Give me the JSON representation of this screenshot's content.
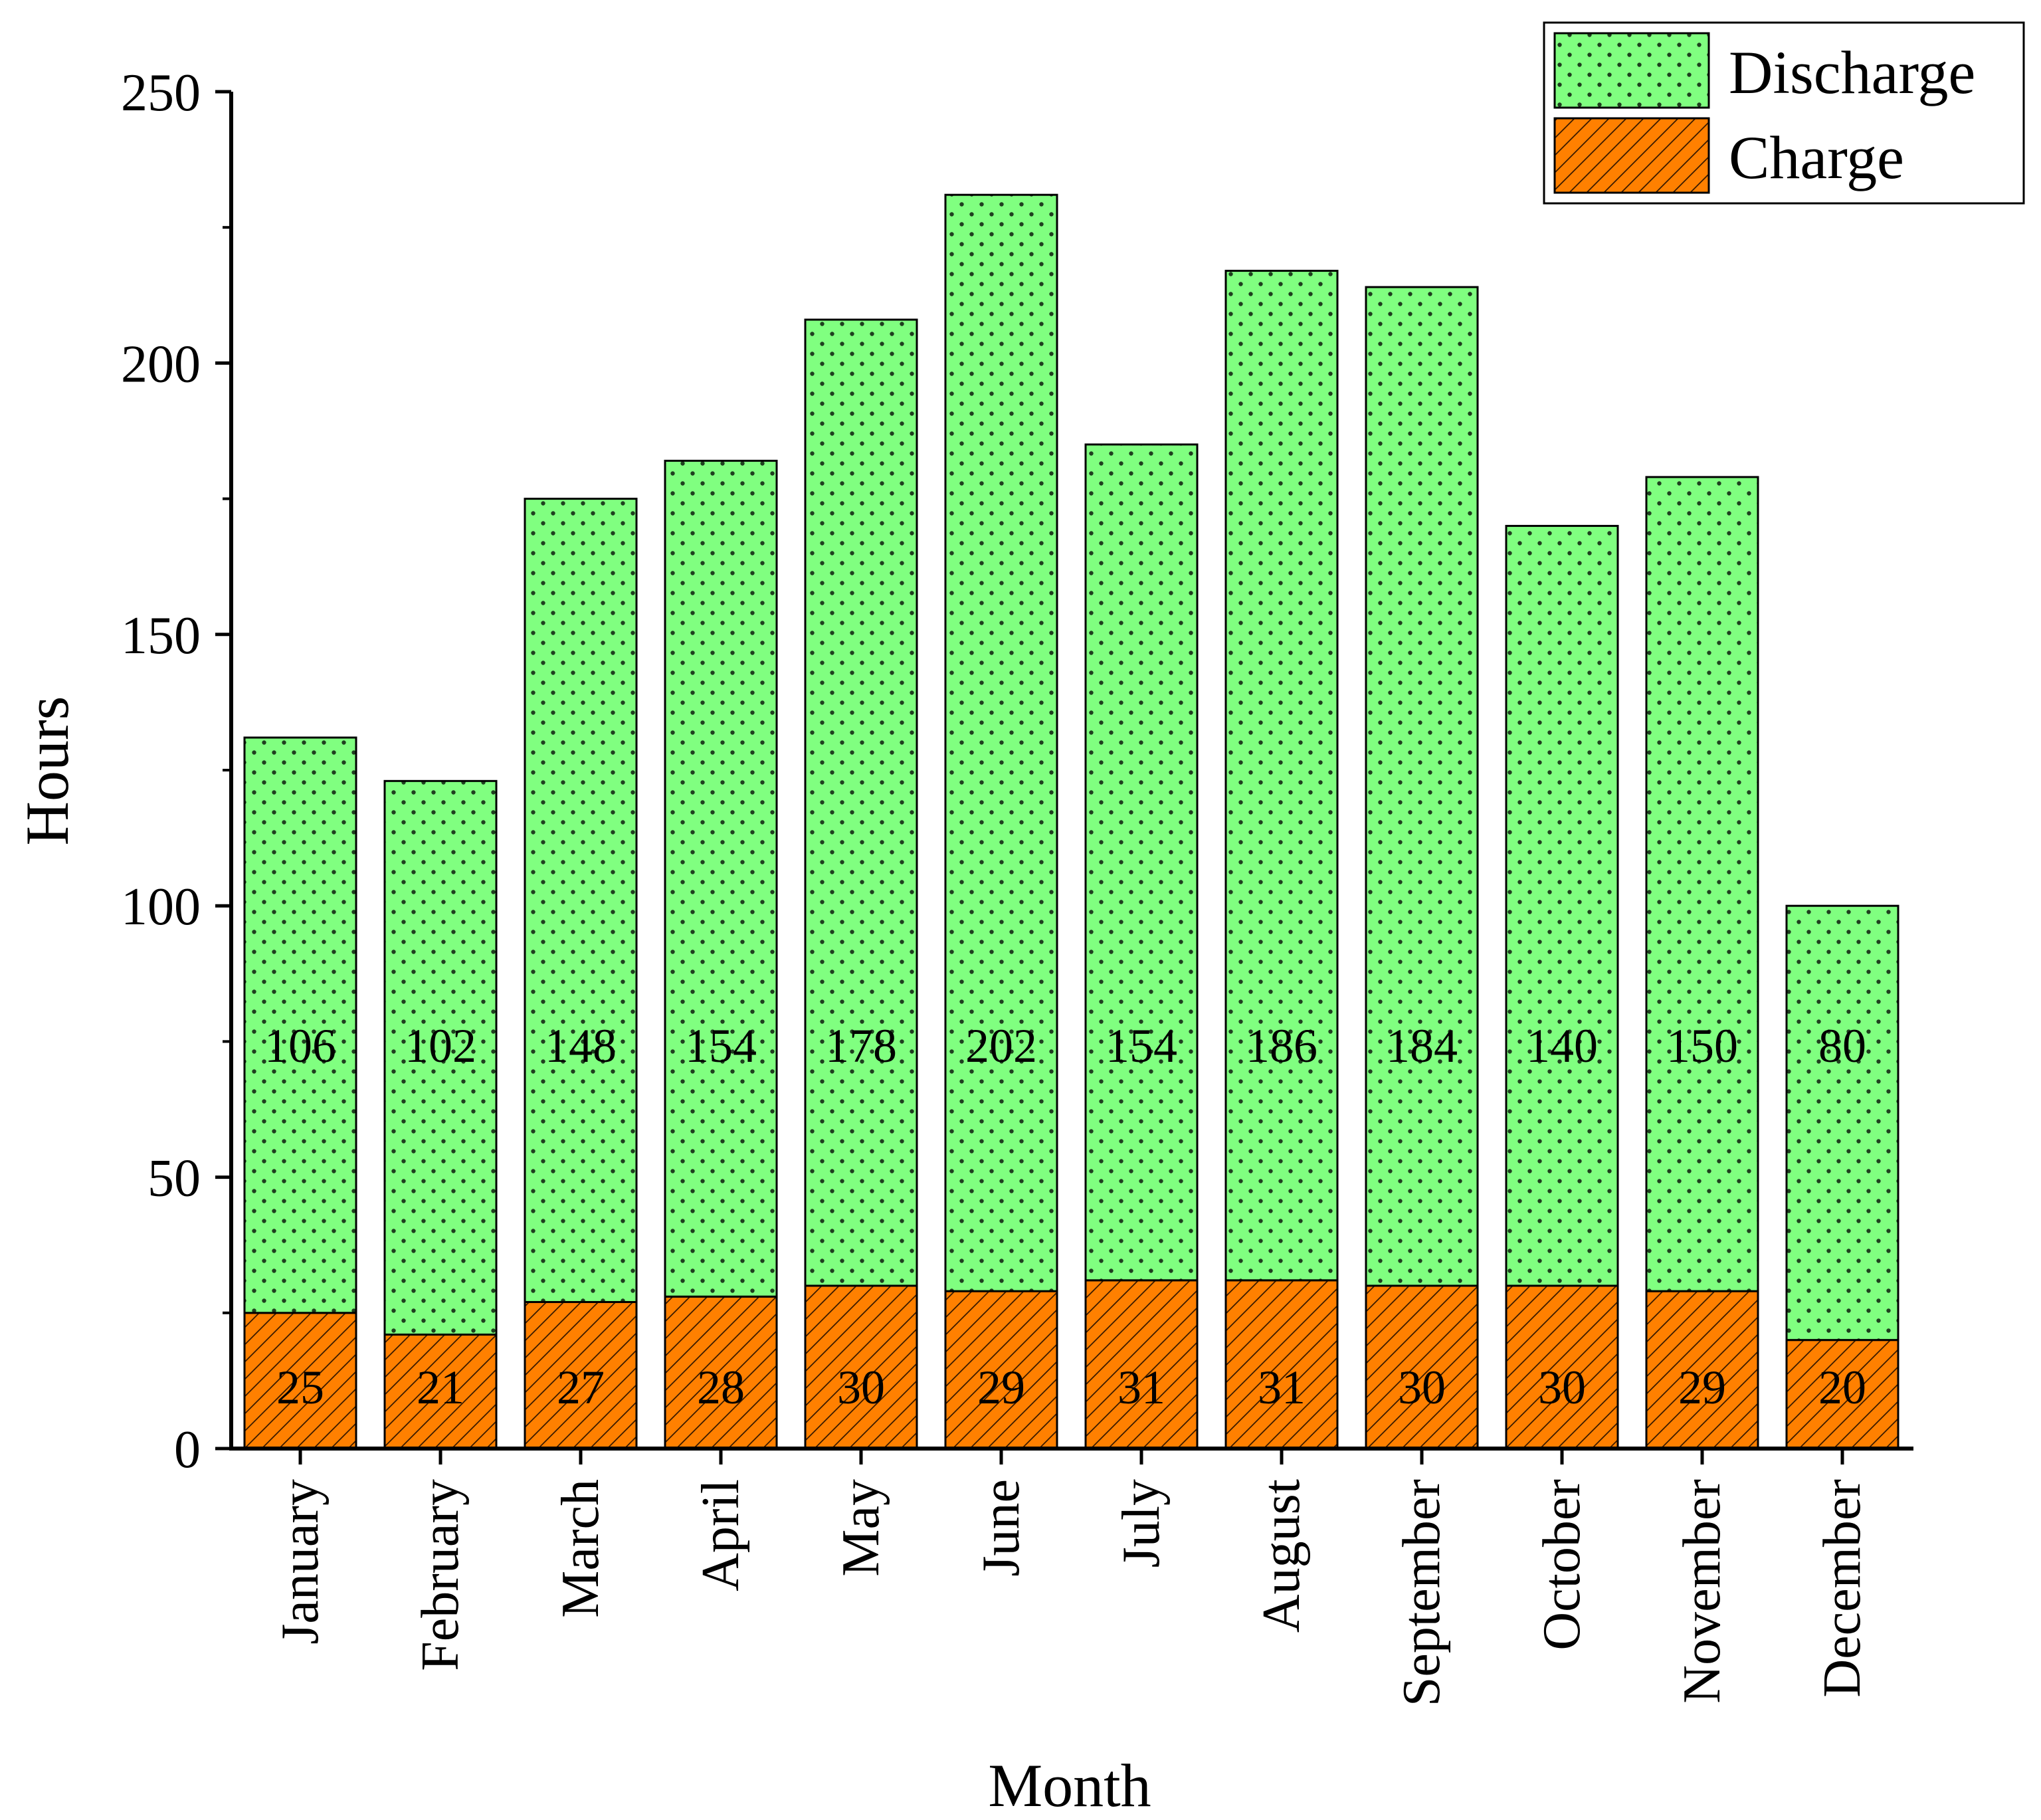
{
  "chart_data": {
    "type": "bar",
    "stacked": true,
    "title": "",
    "xlabel": "Month",
    "ylabel": "Hours",
    "ylim": [
      0,
      250
    ],
    "yticks": [
      0,
      50,
      100,
      150,
      200,
      250
    ],
    "grid": false,
    "legend_position": "top-right",
    "categories": [
      "January",
      "February",
      "March",
      "April",
      "May",
      "June",
      "July",
      "August",
      "September",
      "October",
      "November",
      "December"
    ],
    "series": [
      {
        "name": "Charge",
        "color": "#ff8000",
        "pattern": "diagonal-hatch",
        "values": [
          25,
          21,
          27,
          28,
          30,
          29,
          31,
          31,
          30,
          30,
          29,
          20
        ]
      },
      {
        "name": "Discharge",
        "color": "#80ff80",
        "pattern": "dots",
        "values": [
          106,
          102,
          148,
          154,
          178,
          202,
          154,
          186,
          184,
          140,
          150,
          80
        ]
      }
    ],
    "legend_order": [
      "Discharge",
      "Charge"
    ]
  }
}
